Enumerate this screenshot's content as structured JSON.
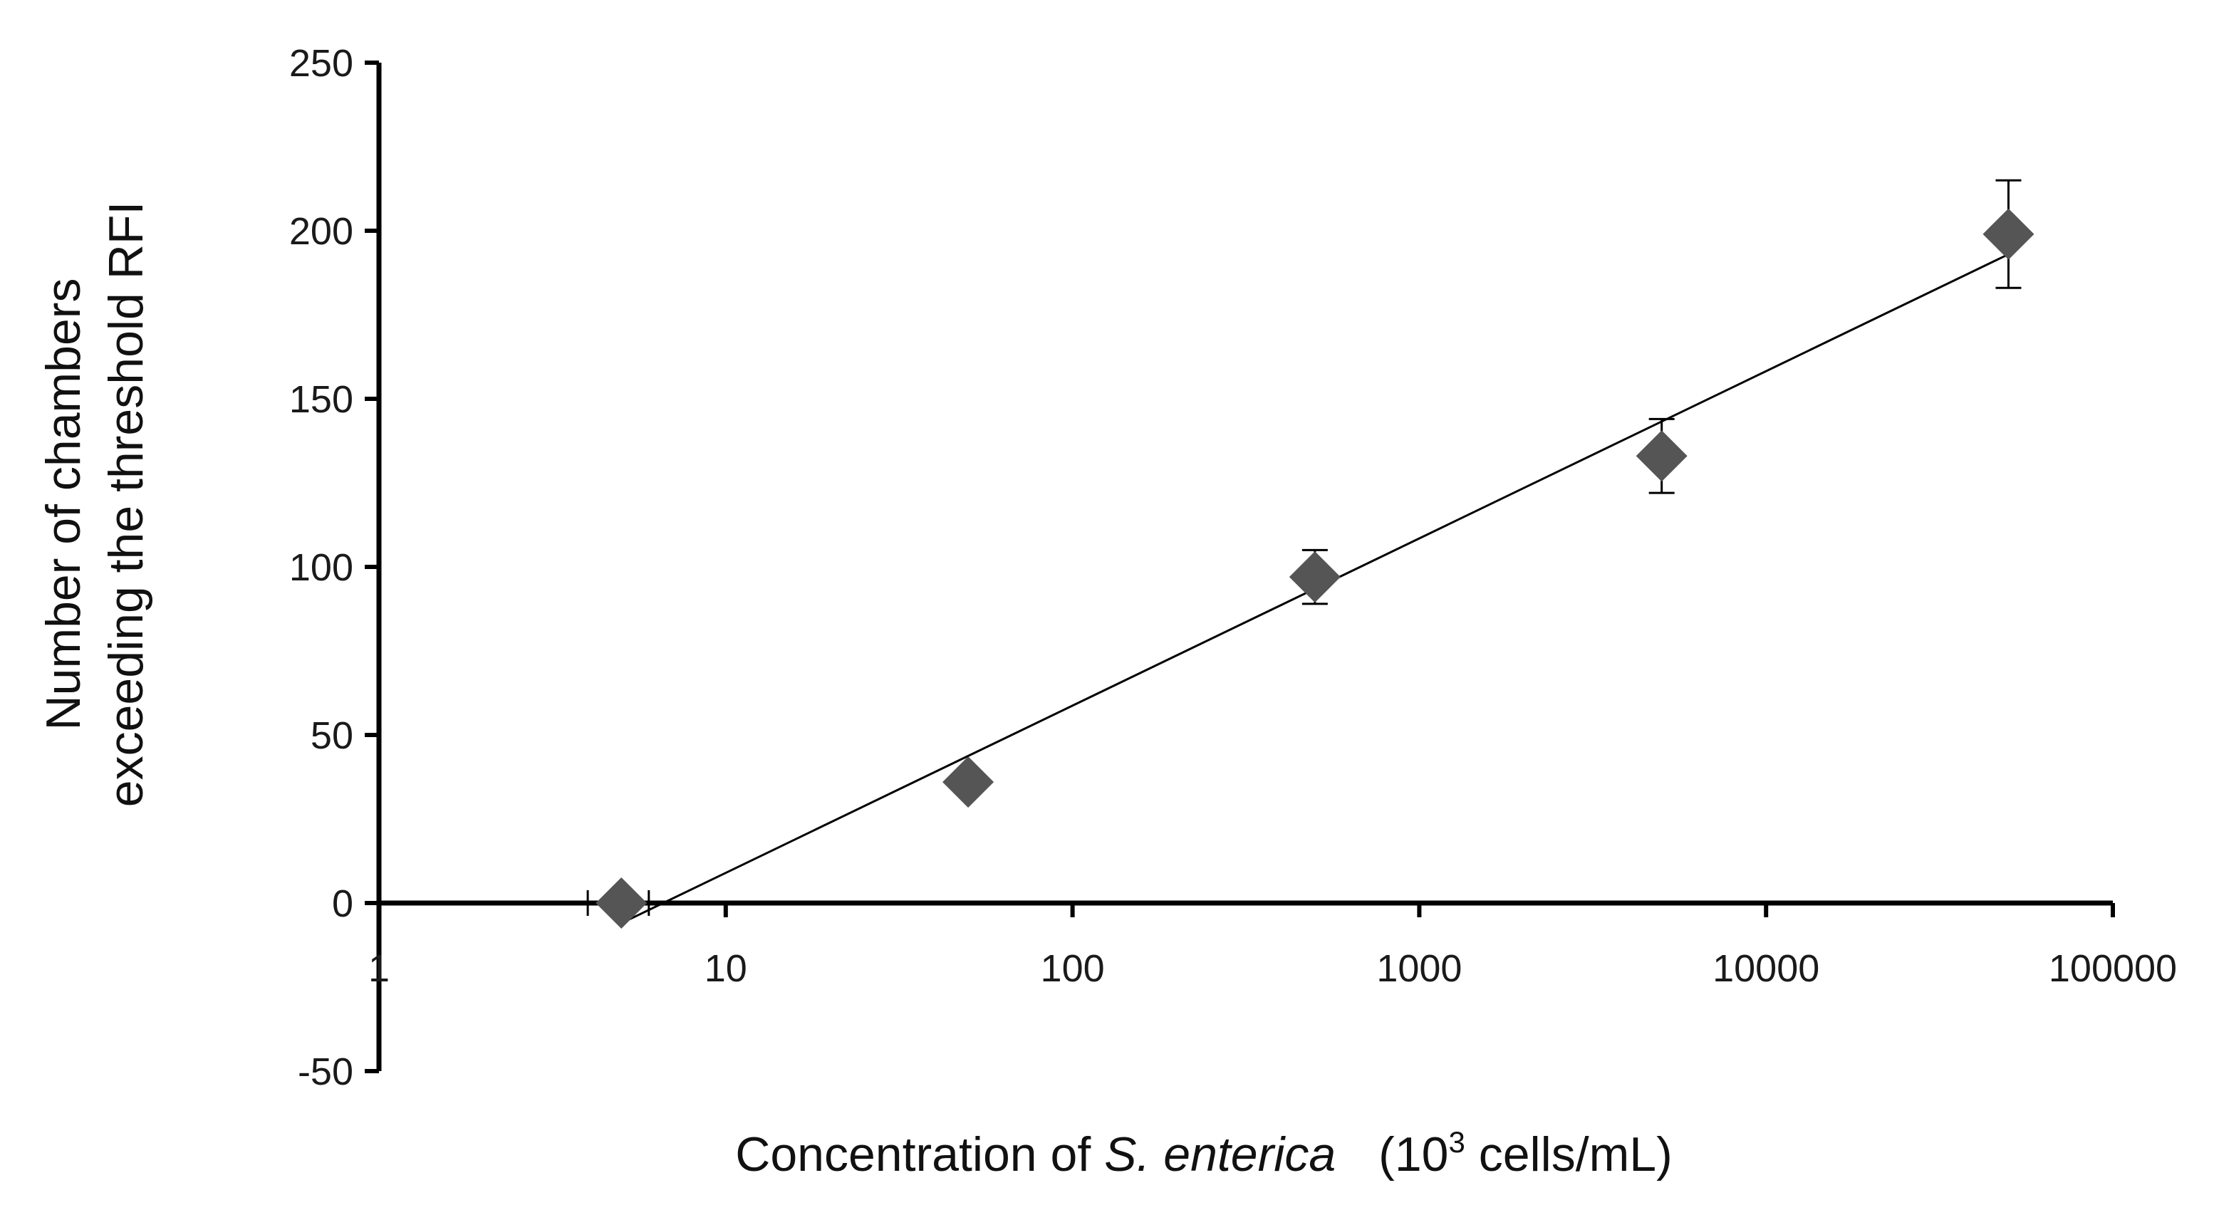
{
  "chart_data": {
    "type": "scatter",
    "title": "",
    "xlabel": {
      "prefix": "Concentration of ",
      "species": "S. enterica",
      "unit_open": "(10",
      "unit_sup": "3",
      "unit_close": " cells/mL)"
    },
    "ylabel": {
      "line1": "Number of chambers",
      "line2": "exceeding the threshold RFI"
    },
    "x_scale": "log",
    "xlim": [
      1,
      100000
    ],
    "ylim": [
      -50,
      250
    ],
    "x_tick_labels": [
      "1",
      "10",
      "100",
      "1000",
      "10000",
      "100000"
    ],
    "y_tick_labels": [
      "-50",
      "0",
      "50",
      "100",
      "150",
      "200",
      "250"
    ],
    "x_ticks": [
      1,
      10,
      100,
      1000,
      10000,
      100000
    ],
    "y_ticks": [
      -50,
      0,
      50,
      100,
      150,
      200,
      250
    ],
    "series": [
      {
        "points": [
          {
            "x": 5,
            "y": 0,
            "err_x": 1
          },
          {
            "x": 50,
            "y": 36,
            "err": 0
          },
          {
            "x": 500,
            "y": 97,
            "err": 8
          },
          {
            "x": 5000,
            "y": 133,
            "err": 11
          },
          {
            "x": 50000,
            "y": 199,
            "err": 16
          }
        ],
        "color": "#555555",
        "marker": "diamond"
      }
    ],
    "trendline": {
      "x_start": 5,
      "y_start": -6,
      "x_end": 50000,
      "y_end": 193,
      "color": "#000000"
    },
    "grid": false,
    "legend": "none"
  }
}
